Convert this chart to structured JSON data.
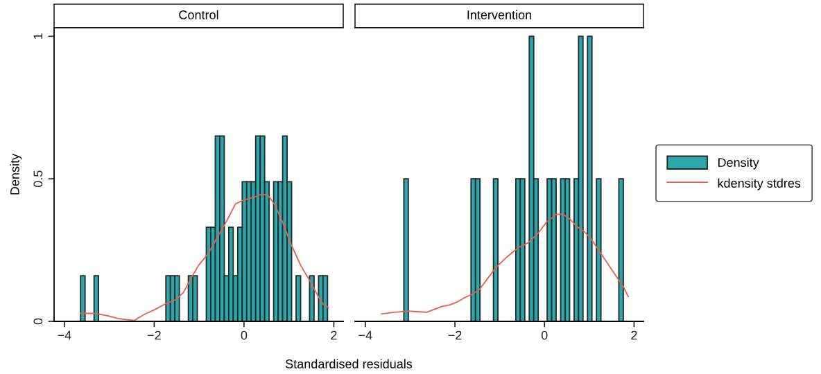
{
  "chart_data": [
    {
      "type": "histogram",
      "title": "Control",
      "xlabel": "Standardised residuals",
      "ylabel": "Density",
      "legend": "right",
      "grid": false,
      "xlim": [
        -4.23,
        2.21
      ],
      "ylim": [
        0,
        1.03
      ],
      "xticks": [
        -4,
        -2,
        0,
        2
      ],
      "yticks": [
        0,
        {
          "value": 0.5,
          "label": "0.5"
        },
        1
      ],
      "series": [
        {
          "name": "Density",
          "color": "#2ba6ab",
          "bins": [
            -3.64,
            -3.54,
            -3.44,
            -3.34,
            -3.24,
            -3.14,
            -3.04,
            -2.94,
            -2.84,
            -2.74,
            -2.64,
            -2.54,
            -2.44,
            -2.34,
            -2.24,
            -2.14,
            -2.04,
            -1.94,
            -1.84,
            -1.74,
            -1.64,
            -1.54,
            -1.44,
            -1.34,
            -1.24,
            -1.14,
            -1.04,
            -0.94,
            -0.84,
            -0.74,
            -0.64,
            -0.54,
            -0.44,
            -0.34,
            -0.24,
            -0.14,
            -0.04,
            0.06,
            0.16,
            0.26,
            0.36,
            0.46,
            0.56,
            0.66,
            0.76,
            0.86,
            0.96,
            1.06,
            1.16,
            1.26,
            1.36,
            1.46,
            1.56,
            1.66,
            1.76,
            1.86
          ],
          "values": [
            0.16,
            0,
            0,
            0.16,
            0,
            0,
            0,
            0,
            0,
            0,
            0,
            0,
            0,
            0,
            0,
            0,
            0,
            0,
            0,
            0.16,
            0.16,
            0.16,
            0,
            0,
            0.16,
            0.16,
            0,
            0,
            0.33,
            0.33,
            0.65,
            0.65,
            0.16,
            0.33,
            0.16,
            0.33,
            0.49,
            0.49,
            0.49,
            0.65,
            0.65,
            0.49,
            0,
            0.49,
            0.49,
            0.65,
            0.49,
            0,
            0.16,
            0,
            0,
            0.16,
            0,
            0.16,
            0.16
          ]
        },
        {
          "name": "kdensity stdres",
          "type": "line",
          "color": "#e8604c",
          "x": [
            -3.64,
            -3.33,
            -3.02,
            -2.81,
            -2.45,
            -2.2,
            -1.99,
            -1.73,
            -1.53,
            -1.35,
            -1.16,
            -1.01,
            -0.8,
            -0.6,
            -0.39,
            -0.19,
            -0.03,
            0.12,
            0.28,
            0.41,
            0.54,
            0.69,
            0.85,
            1.05,
            1.26,
            1.46,
            1.67,
            1.77,
            1.88
          ],
          "values": [
            0.028,
            0.028,
            0.019,
            0.01,
            0.003,
            0.026,
            0.041,
            0.063,
            0.075,
            0.101,
            0.156,
            0.197,
            0.237,
            0.294,
            0.351,
            0.412,
            0.424,
            0.431,
            0.439,
            0.447,
            0.441,
            0.408,
            0.351,
            0.27,
            0.197,
            0.144,
            0.083,
            0.059,
            0.049
          ]
        }
      ]
    },
    {
      "type": "histogram",
      "title": "Intervention",
      "tick_labels": "x",
      "grid": false,
      "xlim": [
        -4.23,
        2.21
      ],
      "ylim": [
        0,
        1.03
      ],
      "xticks": [
        -4,
        -2,
        0,
        2
      ],
      "series": [
        {
          "color": "#2ba6ab",
          "bins": [
            -3.14,
            -3.04,
            -2.94,
            -2.84,
            -2.74,
            -2.64,
            -2.54,
            -2.44,
            -2.34,
            -2.24,
            -2.14,
            -2.04,
            -1.94,
            -1.84,
            -1.74,
            -1.64,
            -1.54,
            -1.44,
            -1.34,
            -1.24,
            -1.14,
            -1.04,
            -0.94,
            -0.84,
            -0.74,
            -0.64,
            -0.54,
            -0.44,
            -0.34,
            -0.24,
            -0.14,
            -0.04,
            0.06,
            0.16,
            0.26,
            0.36,
            0.46,
            0.56,
            0.66,
            0.76,
            0.86,
            0.96,
            1.06,
            1.16,
            1.26,
            1.36,
            1.46,
            1.56,
            1.66,
            1.76
          ],
          "values": [
            0.5,
            0,
            0,
            0,
            0,
            0,
            0,
            0,
            0,
            0,
            0,
            0,
            0,
            0,
            0,
            0.5,
            0.5,
            0,
            0,
            0,
            0.5,
            0,
            0,
            0,
            0,
            0.5,
            0.5,
            0,
            1,
            0.5,
            0,
            0,
            0.5,
            0.5,
            0,
            0.5,
            0.5,
            0,
            0.5,
            1,
            0,
            1,
            0,
            0.5,
            0,
            0,
            0,
            0,
            0.5
          ]
        },
        {
          "type": "line",
          "color": "#e8604c",
          "x": [
            -3.64,
            -3.35,
            -3.04,
            -2.84,
            -2.63,
            -2.48,
            -2.27,
            -2.11,
            -1.96,
            -1.81,
            -1.6,
            -1.44,
            -1.29,
            -1.08,
            -0.83,
            -0.57,
            -0.36,
            -0.15,
            0.05,
            0.26,
            0.41,
            0.57,
            0.72,
            0.88,
            1.03,
            1.29,
            1.55,
            1.76,
            1.87
          ],
          "values": [
            0.026,
            0.032,
            0.036,
            0.034,
            0.032,
            0.041,
            0.053,
            0.058,
            0.067,
            0.081,
            0.096,
            0.114,
            0.146,
            0.19,
            0.227,
            0.26,
            0.276,
            0.308,
            0.349,
            0.375,
            0.376,
            0.358,
            0.333,
            0.316,
            0.292,
            0.231,
            0.17,
            0.122,
            0.087
          ]
        }
      ]
    }
  ]
}
